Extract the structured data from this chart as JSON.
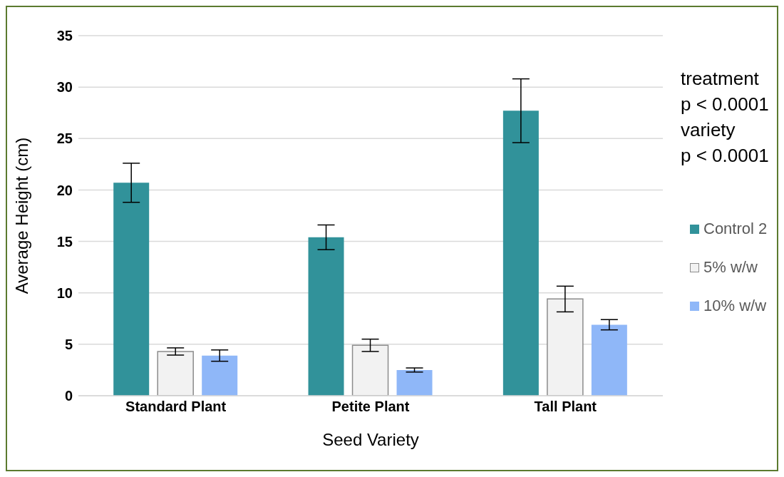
{
  "chart_data": {
    "type": "bar",
    "xlabel": "Seed Variety",
    "ylabel": "Average Height (cm)",
    "categories": [
      "Standard Plant",
      "Petite Plant",
      "Tall Plant"
    ],
    "series": [
      {
        "name": "Control 2",
        "color": "#31929a",
        "values": [
          20.7,
          15.4,
          27.7
        ],
        "errors": [
          1.9,
          1.2,
          3.1
        ]
      },
      {
        "name": "5% w/w",
        "color": "#f2f2f2",
        "values": [
          4.3,
          4.9,
          9.4
        ],
        "errors": [
          0.35,
          0.6,
          1.25
        ]
      },
      {
        "name": "10% w/w",
        "color": "#8fb7f8",
        "values": [
          3.9,
          2.5,
          6.9
        ],
        "errors": [
          0.55,
          0.2,
          0.5
        ]
      }
    ],
    "ylim": [
      0,
      35
    ],
    "yticks": [
      0,
      5,
      10,
      15,
      20,
      25,
      30,
      35
    ],
    "grid": "y",
    "legend": "right",
    "annotations": [
      "treatment",
      "p < 0.0001",
      "variety",
      "p < 0.0001"
    ]
  }
}
